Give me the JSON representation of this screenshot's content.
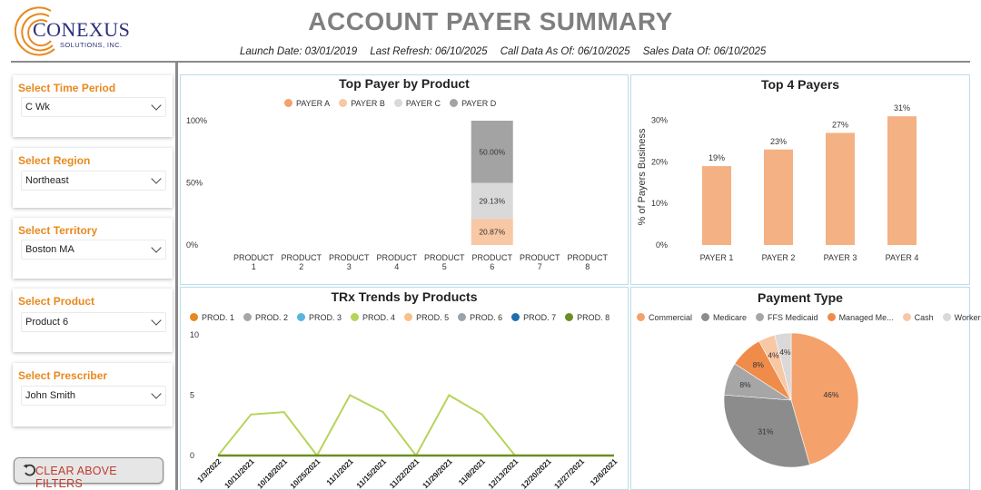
{
  "header": {
    "logo_name": "CONEXUS",
    "logo_sub": "SOLUTIONS, INC.",
    "title": "ACCOUNT PAYER SUMMARY",
    "launch_date": "Launch Date: 03/01/2019",
    "last_refresh": "Last Refresh: 06/10/2025",
    "call_data": "Call Data As Of: 06/10/2025",
    "sales_data": "Sales Data Of: 06/10/2025"
  },
  "filters": [
    {
      "label": "Select Time Period",
      "value": "C Wk"
    },
    {
      "label": "Select Region",
      "value": "Northeast"
    },
    {
      "label": "Select Territory",
      "value": "Boston MA"
    },
    {
      "label": "Select Product",
      "value": "Product 6"
    },
    {
      "label": "Select Prescriber",
      "value": "John Smith"
    }
  ],
  "clear_button": {
    "label": "CLEAR ABOVE FILTERS",
    "icon": "undo-icon"
  },
  "colors": {
    "accent_orange": "#e8891e",
    "payer_a": "#f4a16b",
    "payer_b": "#f8c7a4",
    "payer_c": "#d9d9d9",
    "payer_d": "#a3a3a3",
    "bar": "#f4b183",
    "line_prod4": "#b5d55a",
    "line_prod8": "#6b8e23"
  },
  "charts": {
    "top_payer": {
      "title": "Top Payer by Product",
      "legend": [
        {
          "name": "PAYER A",
          "color": "#f4a16b"
        },
        {
          "name": "PAYER B",
          "color": "#f8c7a4"
        },
        {
          "name": "PAYER C",
          "color": "#d9d9d9"
        },
        {
          "name": "PAYER D",
          "color": "#a3a3a3"
        }
      ]
    },
    "top4": {
      "title": "Top 4 Payers",
      "ylabel": "% of Payers Business"
    },
    "trx": {
      "title": "TRx Trends by Products",
      "legend": [
        {
          "name": "PROD. 1",
          "color": "#e8891e"
        },
        {
          "name": "PROD. 2",
          "color": "#a6a6a6"
        },
        {
          "name": "PROD. 3",
          "color": "#5ab4e0"
        },
        {
          "name": "PROD. 4",
          "color": "#b5d55a"
        },
        {
          "name": "PROD. 5",
          "color": "#f8c08a"
        },
        {
          "name": "PROD. 6",
          "color": "#9aa3aa"
        },
        {
          "name": "PROD. 7",
          "color": "#1f6fb0"
        },
        {
          "name": "PROD. 8",
          "color": "#6b8e23"
        }
      ]
    },
    "payment": {
      "title": "Payment Type",
      "legend": [
        {
          "name": "Commercial",
          "color": "#f4a16b"
        },
        {
          "name": "Medicare",
          "color": "#8c8c8c"
        },
        {
          "name": "FFS Medicaid",
          "color": "#a6a6a6"
        },
        {
          "name": "Managed Me...",
          "color": "#ef8c4a"
        },
        {
          "name": "Cash",
          "color": "#f8c7a4"
        },
        {
          "name": "Workers ...",
          "color": "#d9d9d9"
        }
      ]
    }
  },
  "chart_data": [
    {
      "type": "bar",
      "stacked": true,
      "percent": true,
      "title": "Top Payer by Product",
      "categories": [
        "PRODUCT 1",
        "PRODUCT 2",
        "PRODUCT 3",
        "PRODUCT 4",
        "PRODUCT 5",
        "PRODUCT 6",
        "PRODUCT 7",
        "PRODUCT 8"
      ],
      "series": [
        {
          "name": "PAYER A",
          "values": [
            0,
            0,
            0,
            0,
            0,
            0,
            0,
            0
          ]
        },
        {
          "name": "PAYER B",
          "values": [
            0,
            0,
            0,
            0,
            0,
            20.87,
            0,
            0
          ]
        },
        {
          "name": "PAYER C",
          "values": [
            0,
            0,
            0,
            0,
            0,
            29.13,
            0,
            0
          ]
        },
        {
          "name": "PAYER D",
          "values": [
            0,
            0,
            0,
            0,
            0,
            50.0,
            0,
            0
          ]
        }
      ],
      "yticks": [
        "0%",
        "50%",
        "100%"
      ],
      "ylim": [
        0,
        100
      ],
      "legend_position": "top"
    },
    {
      "type": "bar",
      "title": "Top 4 Payers",
      "categories": [
        "PAYER 1",
        "PAYER 2",
        "PAYER 3",
        "PAYER 4"
      ],
      "values": [
        19,
        23,
        27,
        31
      ],
      "labels": [
        "19%",
        "23%",
        "27%",
        "31%"
      ],
      "ylabel": "% of Payers Business",
      "yticks": [
        "0%",
        "10%",
        "20%",
        "30%"
      ],
      "ylim": [
        0,
        33
      ]
    },
    {
      "type": "line",
      "title": "TRx Trends by Products",
      "categories": [
        "1/3/2022",
        "10/11/2021",
        "10/18/2021",
        "10/25/2021",
        "11/1/2021",
        "11/15/2021",
        "11/22/2021",
        "11/29/2021",
        "11/8/2021",
        "12/13/2021",
        "12/20/2021",
        "12/27/2021",
        "12/6/2021"
      ],
      "series": [
        {
          "name": "PROD. 4",
          "values": [
            0,
            3.4,
            3.6,
            0,
            5,
            3.6,
            0,
            5,
            3.4,
            0,
            0,
            0,
            0
          ]
        },
        {
          "name": "PROD. 8",
          "values": [
            0,
            0,
            0,
            0,
            0,
            0,
            0,
            0,
            0,
            0,
            0,
            0,
            0
          ]
        }
      ],
      "yticks": [
        "0",
        "5",
        "10"
      ],
      "ylim": [
        0,
        10
      ],
      "legend_position": "top"
    },
    {
      "type": "pie",
      "title": "Payment Type",
      "categories": [
        "Commercial",
        "Medicare",
        "FFS Medicaid",
        "Managed Me...",
        "Cash",
        "Workers ..."
      ],
      "values": [
        46,
        31,
        8,
        8,
        4,
        4
      ],
      "labels": [
        "46%",
        "31%",
        "8%",
        "8%",
        "4%",
        "4%"
      ],
      "legend_position": "top"
    }
  ]
}
